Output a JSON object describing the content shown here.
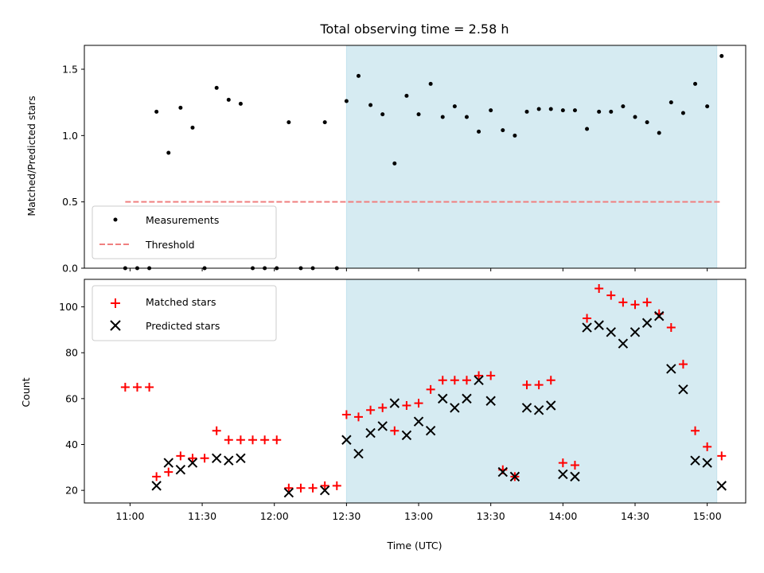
{
  "chart_data": [
    {
      "type": "scatter",
      "title": "Total observing time = 2.58 h",
      "ylabel": "Matched/Predicted stars",
      "xlabel": "",
      "ylim": [
        0,
        1.68
      ],
      "yticks": [
        "0.0",
        "0.5",
        "1.0",
        "1.5"
      ],
      "shaded_region": {
        "x": [
          "12:30",
          "15:04"
        ],
        "color": "#add8e6"
      },
      "legend_position": "lower-left",
      "series": [
        {
          "name": "Measurements",
          "marker": "dot",
          "color": "#000000",
          "x": [
            "10:58",
            "11:03",
            "11:08",
            "11:11",
            "11:16",
            "11:21",
            "11:26",
            "11:31",
            "11:36",
            "11:41",
            "11:46",
            "11:51",
            "11:56",
            "12:01",
            "12:06",
            "12:11",
            "12:16",
            "12:21",
            "12:26",
            "12:30",
            "12:35",
            "12:40",
            "12:45",
            "12:50",
            "12:55",
            "13:00",
            "13:05",
            "13:10",
            "13:15",
            "13:20",
            "13:25",
            "13:30",
            "13:35",
            "13:40",
            "13:45",
            "13:50",
            "13:55",
            "14:00",
            "14:05",
            "14:10",
            "14:15",
            "14:20",
            "14:25",
            "14:30",
            "14:35",
            "14:40",
            "14:45",
            "14:50",
            "14:55",
            "15:00",
            "15:06"
          ],
          "y": [
            0,
            0,
            0,
            1.18,
            0.87,
            1.21,
            1.06,
            0,
            1.36,
            1.27,
            1.24,
            0,
            0,
            0,
            1.1,
            0,
            0,
            1.1,
            0,
            1.26,
            1.45,
            1.23,
            1.16,
            0.79,
            1.3,
            1.16,
            1.39,
            1.14,
            1.22,
            1.14,
            1.03,
            1.19,
            1.04,
            1.0,
            1.18,
            1.2,
            1.2,
            1.19,
            1.19,
            1.05,
            1.18,
            1.18,
            1.22,
            1.14,
            1.1,
            1.02,
            1.25,
            1.17,
            1.39,
            1.22,
            1.6
          ]
        },
        {
          "name": "Threshold",
          "line_style": "dashed",
          "color": "#f08080",
          "x": [
            "10:58",
            "15:06"
          ],
          "y": [
            0.5,
            0.5
          ]
        }
      ]
    },
    {
      "type": "scatter",
      "title": "",
      "xlabel": "Time (UTC)",
      "ylabel": "Count",
      "ylim": [
        14.5,
        112
      ],
      "yticks": [
        "20",
        "40",
        "60",
        "80",
        "100"
      ],
      "xticks": [
        "11:00",
        "11:30",
        "12:00",
        "12:30",
        "13:00",
        "13:30",
        "14:00",
        "14:30",
        "15:00"
      ],
      "shaded_region": {
        "x": [
          "12:30",
          "15:04"
        ],
        "color": "#add8e6"
      },
      "legend_position": "upper-left",
      "series": [
        {
          "name": "Matched stars",
          "marker": "plus",
          "color": "#ff0000",
          "x": [
            "10:58",
            "11:03",
            "11:08",
            "11:11",
            "11:16",
            "11:21",
            "11:26",
            "11:31",
            "11:36",
            "11:41",
            "11:46",
            "11:51",
            "11:56",
            "12:01",
            "12:06",
            "12:11",
            "12:16",
            "12:21",
            "12:26",
            "12:30",
            "12:35",
            "12:40",
            "12:45",
            "12:50",
            "12:55",
            "13:00",
            "13:05",
            "13:10",
            "13:15",
            "13:20",
            "13:25",
            "13:30",
            "13:35",
            "13:40",
            "13:45",
            "13:50",
            "13:55",
            "14:00",
            "14:05",
            "14:10",
            "14:15",
            "14:20",
            "14:25",
            "14:30",
            "14:35",
            "14:40",
            "14:45",
            "14:50",
            "14:55",
            "15:00",
            "15:06"
          ],
          "y": [
            65,
            65,
            65,
            26,
            28,
            35,
            34,
            34,
            46,
            42,
            42,
            42,
            42,
            42,
            21,
            21,
            21,
            22,
            22,
            53,
            52,
            55,
            56,
            46,
            57,
            58,
            64,
            68,
            68,
            68,
            70,
            70,
            29,
            26,
            66,
            66,
            68,
            32,
            31,
            95,
            108,
            105,
            102,
            101,
            102,
            97,
            91,
            75,
            46,
            39,
            35
          ]
        },
        {
          "name": "Predicted stars",
          "marker": "x",
          "color": "#000000",
          "x": [
            "11:11",
            "11:16",
            "11:21",
            "11:26",
            "11:36",
            "11:41",
            "11:46",
            "12:06",
            "12:21",
            "12:30",
            "12:35",
            "12:40",
            "12:45",
            "12:50",
            "12:55",
            "13:00",
            "13:05",
            "13:10",
            "13:15",
            "13:20",
            "13:25",
            "13:30",
            "13:35",
            "13:40",
            "13:45",
            "13:50",
            "13:55",
            "14:00",
            "14:05",
            "14:10",
            "14:15",
            "14:20",
            "14:25",
            "14:30",
            "14:35",
            "14:40",
            "14:45",
            "14:50",
            "14:55",
            "15:00",
            "15:06"
          ],
          "y": [
            22,
            32,
            29,
            32,
            34,
            33,
            34,
            19,
            20,
            42,
            36,
            45,
            48,
            58,
            44,
            50,
            46,
            60,
            56,
            60,
            68,
            59,
            28,
            26,
            56,
            55,
            57,
            27,
            26,
            91,
            92,
            89,
            84,
            89,
            93,
            96,
            73,
            64,
            33,
            32,
            22
          ]
        }
      ]
    }
  ]
}
